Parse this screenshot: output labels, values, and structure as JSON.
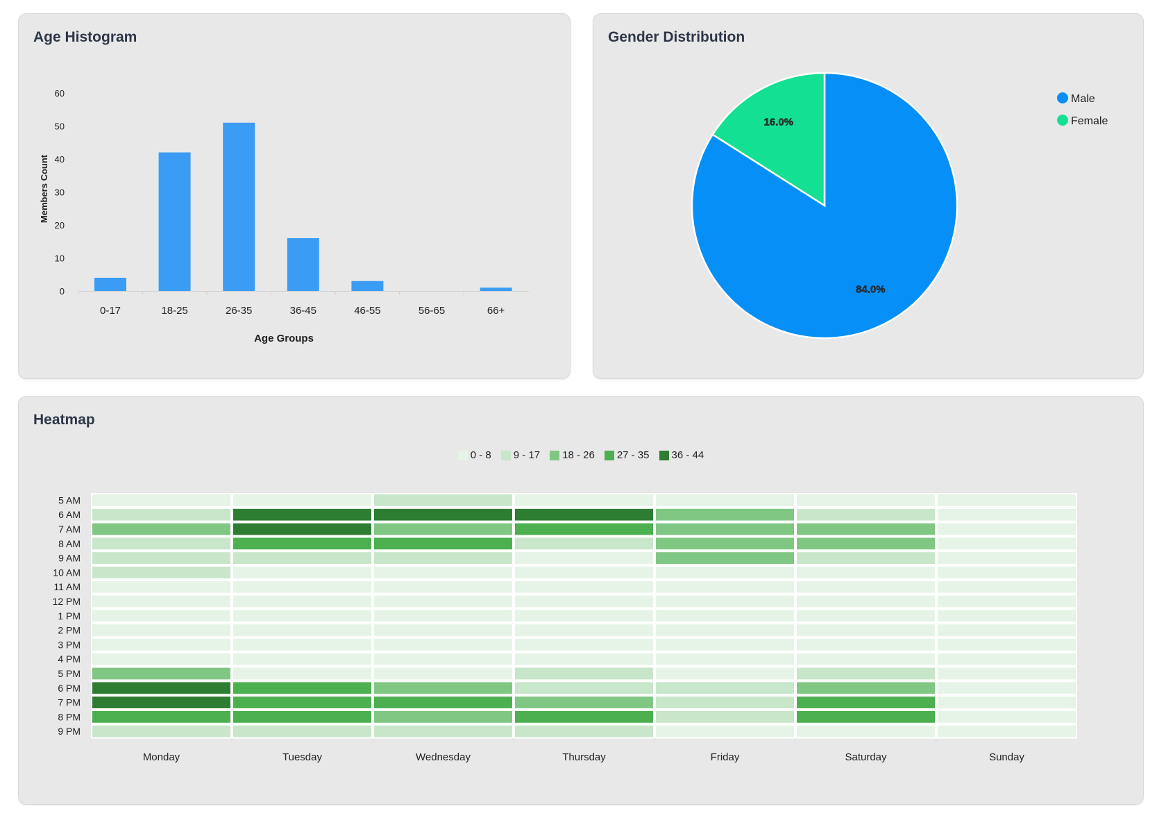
{
  "chart_data": [
    {
      "type": "bar",
      "title": "Age Histogram",
      "categories": [
        "0-17",
        "18-25",
        "26-35",
        "36-45",
        "46-55",
        "56-65",
        "66+"
      ],
      "values": [
        4,
        42,
        51,
        16,
        3,
        0,
        1
      ],
      "xlabel": "Age Groups",
      "ylabel": "Members Count",
      "ylim": [
        0,
        60
      ],
      "yticks": [
        0,
        10,
        20,
        30,
        40,
        50,
        60
      ],
      "color": "#3b9cf5"
    },
    {
      "type": "pie",
      "title": "Gender Distribution",
      "slices": [
        {
          "name": "Male",
          "value": 84.0,
          "label": "84.0%",
          "color": "#068ff7"
        },
        {
          "name": "Female",
          "value": 16.0,
          "label": "16.0%",
          "color": "#14e093"
        }
      ],
      "legend_position": "top-right"
    },
    {
      "type": "heatmap",
      "title": "Heatmap",
      "legend": [
        {
          "label": "0 - 8",
          "color": "#e6f4e7"
        },
        {
          "label": "9 - 17",
          "color": "#c8e6c9"
        },
        {
          "label": "18 - 26",
          "color": "#81c784"
        },
        {
          "label": "27 - 35",
          "color": "#4caf50"
        },
        {
          "label": "36 - 44",
          "color": "#2e7d32"
        }
      ],
      "x": [
        "Monday",
        "Tuesday",
        "Wednesday",
        "Thursday",
        "Friday",
        "Saturday",
        "Sunday"
      ],
      "y": [
        "5 AM",
        "6 AM",
        "7 AM",
        "8 AM",
        "9 AM",
        "10 AM",
        "11 AM",
        "12 PM",
        "1 PM",
        "2 PM",
        "3 PM",
        "4 PM",
        "5 PM",
        "6 PM",
        "7 PM",
        "8 PM",
        "9 PM"
      ],
      "bin_index_by_day": [
        [
          0,
          1,
          2,
          1,
          1,
          1,
          0,
          0,
          0,
          0,
          0,
          0,
          2,
          4,
          4,
          3,
          1
        ],
        [
          0,
          4,
          4,
          3,
          1,
          0,
          0,
          0,
          0,
          0,
          0,
          0,
          0,
          3,
          3,
          3,
          1
        ],
        [
          1,
          4,
          2,
          3,
          1,
          0,
          0,
          0,
          0,
          0,
          0,
          0,
          0,
          2,
          3,
          2,
          1
        ],
        [
          0,
          4,
          3,
          1,
          0,
          0,
          0,
          0,
          0,
          0,
          0,
          0,
          1,
          1,
          2,
          3,
          1
        ],
        [
          0,
          2,
          2,
          2,
          2,
          0,
          0,
          0,
          0,
          0,
          0,
          0,
          0,
          1,
          1,
          1,
          0
        ],
        [
          0,
          1,
          2,
          2,
          1,
          0,
          0,
          0,
          0,
          0,
          0,
          0,
          1,
          2,
          3,
          3,
          0
        ],
        [
          0,
          0,
          0,
          0,
          0,
          0,
          0,
          0,
          0,
          0,
          0,
          0,
          0,
          0,
          0,
          0,
          0
        ]
      ]
    }
  ]
}
